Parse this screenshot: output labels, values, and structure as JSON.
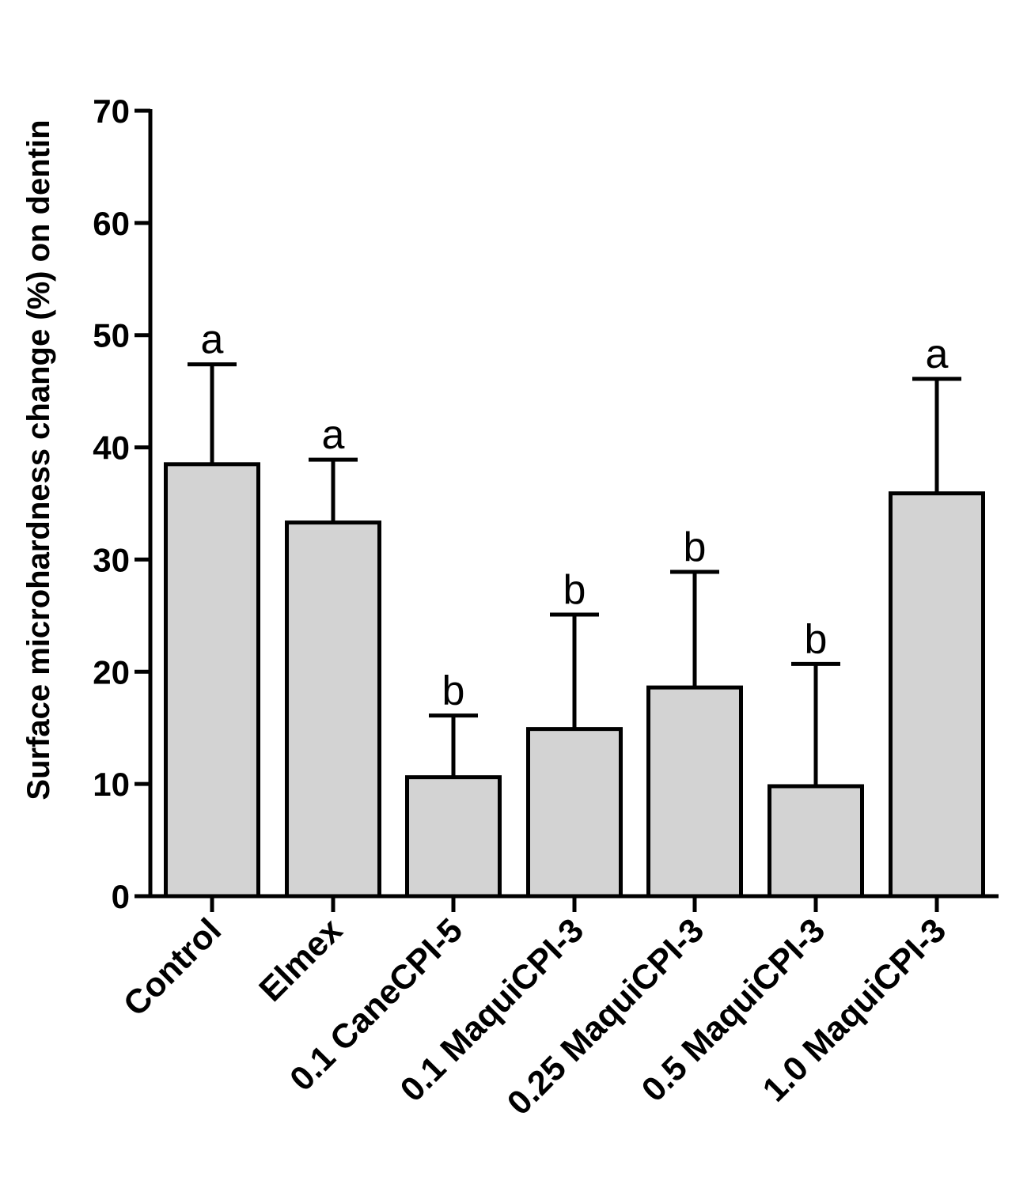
{
  "chart_data": {
    "type": "bar",
    "title": "",
    "xlabel": "",
    "ylabel": "Surface microhardness change (%) on dentin",
    "ylim": [
      0,
      70
    ],
    "yticks": [
      0,
      10,
      20,
      30,
      40,
      50,
      60,
      70
    ],
    "grid": false,
    "categories": [
      "Control",
      "Elmex",
      "0.1 CaneCPI-5",
      "0.1 MaquiCPI-3",
      "0.25 MaquiCPI-3",
      "0.5 MaquiCPI-3",
      "1.0 MaquiCPI-3"
    ],
    "values": [
      38.5,
      33.3,
      10.6,
      14.9,
      18.6,
      9.8,
      35.9
    ],
    "error_upper": [
      8.9,
      5.6,
      5.5,
      10.2,
      10.3,
      10.9,
      10.2
    ],
    "significance_labels": [
      "a",
      "a",
      "b",
      "b",
      "b",
      "b",
      "a"
    ],
    "bar_color": "#d3d3d3",
    "edge_color": "#000000"
  }
}
